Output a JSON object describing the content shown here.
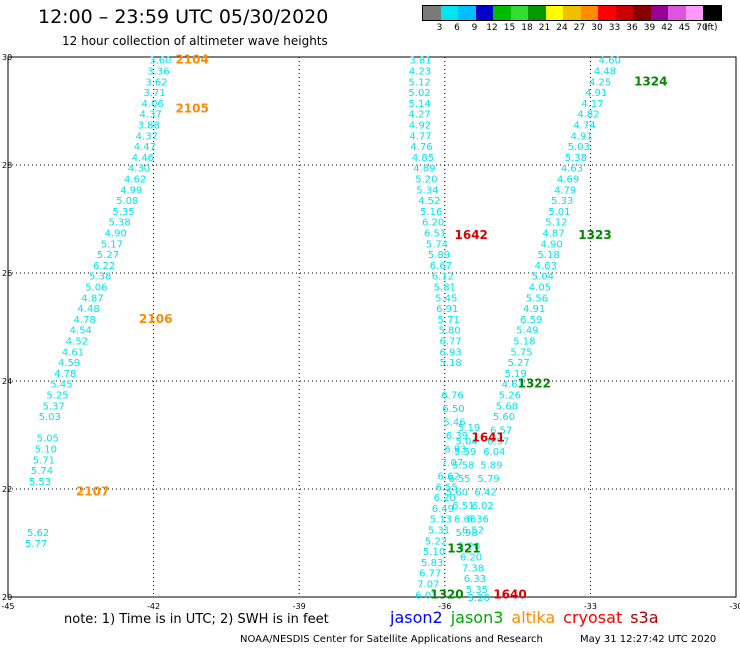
{
  "header": {
    "title": "12:00 – 23:59 UTC 05/30/2020",
    "subtitle": "12 hour collection of altimeter wave heights"
  },
  "colorbar": {
    "labels": [
      "3",
      "6",
      "9",
      "12",
      "15",
      "18",
      "21",
      "24",
      "27",
      "30",
      "33",
      "36",
      "39",
      "42",
      "45",
      "70",
      "(ft)"
    ],
    "colors": [
      "#7a7a7a",
      "#00e5ee",
      "#00bfff",
      "#0000cd",
      "#00bb00",
      "#33dd33",
      "#009900",
      "#ffff00",
      "#f0c000",
      "#ff8c00",
      "#ff0000",
      "#cc0000",
      "#880000",
      "#990099",
      "#dd55dd",
      "#ff99ff",
      "#000000"
    ]
  },
  "footer": {
    "note": "note:  1) Time is in UTC;  2) SWH is in feet",
    "legend": [
      {
        "label": "jason2",
        "color": "#0000ff"
      },
      {
        "label": "jason3",
        "color": "#00aa00"
      },
      {
        "label": "altika",
        "color": "#ff8c00"
      },
      {
        "label": "cryosat",
        "color": "#ff0000"
      },
      {
        "label": "s3a",
        "color": "#aa0000"
      }
    ],
    "credit": "NOAA/NESDIS Center for Satellite Applications and Research",
    "timestamp": "May 31 12:27:42 UTC 2020"
  },
  "chart_data": {
    "type": "scatter",
    "xlim": [
      -45,
      -30
    ],
    "ylim": [
      20,
      30
    ],
    "x_ticks": [
      -45,
      -42,
      -39,
      -36,
      -33,
      -30
    ],
    "y_ticks": [
      20,
      22,
      24,
      26,
      28,
      30
    ],
    "grid": true,
    "value_color": "#00e5ee",
    "tracks": [
      {
        "x": [
          -41.86,
          -41.9,
          -41.94,
          -41.98,
          -42.02,
          -42.06,
          -42.1,
          -42.14,
          -42.18,
          -42.22,
          -42.3,
          -42.38,
          -42.46,
          -42.54,
          -42.62,
          -42.7,
          -42.78,
          -42.86,
          -42.94,
          -43.02,
          -43.1,
          -43.18,
          -43.26,
          -43.34,
          -43.42,
          -43.5,
          -43.58,
          -43.66,
          -43.74,
          -43.82,
          -43.9,
          -43.98,
          -44.06,
          -44.14,
          -44.18,
          -44.22,
          -44.26,
          -44.3,
          -44.34
        ],
        "y": [
          29.95,
          29.75,
          29.55,
          29.35,
          29.15,
          28.95,
          28.75,
          28.55,
          28.35,
          28.15,
          27.95,
          27.75,
          27.55,
          27.35,
          27.15,
          26.95,
          26.75,
          26.55,
          26.35,
          26.15,
          25.95,
          25.75,
          25.55,
          25.35,
          25.15,
          24.95,
          24.75,
          24.55,
          24.35,
          24.15,
          23.95,
          23.75,
          23.55,
          23.35,
          22.95,
          22.75,
          22.55,
          22.35,
          22.15
        ],
        "values": [
          "3.60",
          "3.36",
          "3.62",
          "3.71",
          "4.06",
          "4.37",
          "3.88",
          "4.37",
          "4.47",
          "4.46",
          "4.30",
          "4.62",
          "4.99",
          "5.08",
          "5.35",
          "5.38",
          "4.90",
          "5.17",
          "5.27",
          "6.22",
          "5.38",
          "5.06",
          "4.87",
          "4.48",
          "4.78",
          "4.54",
          "4.52",
          "4.61",
          "4.59",
          "4.78",
          "5.45",
          "5.25",
          "5.37",
          "5.03",
          "5.05",
          "5.10",
          "5.71",
          "5.74",
          "5.53"
        ]
      },
      {
        "x": [
          -44.38,
          -44.42
        ],
        "y": [
          21.2,
          21.0
        ],
        "values": [
          "5.62",
          "5.77"
        ]
      },
      {
        "x": [
          -36.5,
          -36.51,
          -36.52,
          -36.52,
          -36.52,
          -36.52,
          -36.51,
          -36.5,
          -36.48,
          -36.45,
          -36.42,
          -36.38,
          -36.36,
          -36.32,
          -36.28,
          -36.24,
          -36.2,
          -36.16,
          -36.12,
          -36.08,
          -36.04,
          -36.0,
          -35.97,
          -35.95,
          -35.92,
          -35.9,
          -35.88,
          -35.88,
          -35.88
        ],
        "y": [
          29.95,
          29.75,
          29.55,
          29.35,
          29.15,
          28.95,
          28.75,
          28.55,
          28.35,
          28.15,
          27.95,
          27.75,
          27.55,
          27.35,
          27.15,
          26.95,
          26.75,
          26.55,
          26.35,
          26.15,
          25.95,
          25.75,
          25.55,
          25.35,
          25.15,
          24.95,
          24.75,
          24.55,
          24.35
        ],
        "values": [
          "3.81",
          "4.23",
          "5.12",
          "5.02",
          "5.14",
          "4.27",
          "4.92",
          "4.77",
          "4.76",
          "4.85",
          "4.89",
          "5.20",
          "5.34",
          "4.52",
          "5.16",
          "6.20",
          "6.51",
          "5.74",
          "5.89",
          "6.67",
          "6.12",
          "5.81",
          "5.45",
          "6.91",
          "5.71",
          "5.80",
          "6.77",
          "6.93",
          "5.18"
        ]
      },
      {
        "x": [
          -35.84,
          -35.82,
          -35.8,
          -35.75,
          -35.78,
          -35.85,
          -35.92,
          -35.96,
          -36.0,
          -36.04,
          -36.08,
          -36.12,
          -36.18,
          -36.22,
          -36.26,
          -36.3,
          -36.34,
          -36.38
        ],
        "y": [
          23.75,
          23.5,
          23.25,
          23.0,
          22.75,
          22.5,
          22.25,
          22.05,
          21.85,
          21.65,
          21.45,
          21.25,
          21.05,
          20.85,
          20.65,
          20.45,
          20.25,
          20.05
        ],
        "values": [
          "6.76",
          "6.50",
          "5.46",
          "6.39",
          "6.93",
          "7.07",
          "6.62",
          "6.55",
          "6.20",
          "6.49",
          "5.13",
          "5.31",
          "5.22",
          "5.10",
          "5.83",
          "6.77",
          "7.07",
          "6.01"
        ]
      },
      {
        "x": [
          -35.5,
          -35.55,
          -35.58,
          -35.62,
          -35.7,
          -35.75,
          -35.62,
          -35.58,
          -35.55,
          -35.5,
          -35.46,
          -35.42,
          -35.38,
          -35.34,
          -35.3
        ],
        "y": [
          23.15,
          22.9,
          22.7,
          22.45,
          22.2,
          21.95,
          21.7,
          21.45,
          21.2,
          20.95,
          20.75,
          20.55,
          20.35,
          20.15,
          20.0
        ],
        "values": [
          "5.19",
          "5.04",
          "5.59",
          "5.58",
          "6.55",
          "5.60",
          "6.51",
          "6.66",
          "5.98",
          "5.20",
          "6.20",
          "7.38",
          "6.33",
          "5.35",
          "5.20"
        ]
      },
      {
        "x": [
          -32.6,
          -32.7,
          -32.8,
          -32.88,
          -32.96,
          -33.04,
          -33.12,
          -33.18,
          -33.24,
          -33.3,
          -33.38,
          -33.46,
          -33.52,
          -33.58,
          -33.64,
          -33.7,
          -33.76,
          -33.8,
          -33.86,
          -33.92,
          -33.98,
          -34.04,
          -34.1,
          -34.16,
          -34.22,
          -34.3,
          -34.36,
          -34.42,
          -34.48,
          -34.54,
          -34.6,
          -34.66,
          -34.72,
          -34.78,
          -34.84,
          -34.9,
          -34.98,
          -35.04,
          -35.1,
          -35.16,
          -35.22,
          -35.32,
          -35.42
        ],
        "y": [
          29.95,
          29.75,
          29.55,
          29.35,
          29.15,
          28.95,
          28.75,
          28.55,
          28.35,
          28.15,
          27.95,
          27.75,
          27.55,
          27.35,
          27.15,
          26.95,
          26.75,
          26.55,
          26.35,
          26.15,
          25.95,
          25.75,
          25.55,
          25.35,
          25.15,
          24.95,
          24.75,
          24.55,
          24.35,
          24.15,
          23.95,
          23.75,
          23.55,
          23.35,
          23.1,
          22.9,
          22.7,
          22.45,
          22.2,
          21.95,
          21.7,
          21.45,
          21.25
        ],
        "values": [
          "4.60",
          "4.48",
          "4.25",
          "4.91",
          "4.17",
          "4.82",
          "4.74",
          "4.91",
          "5.03",
          "5.38",
          "4.63",
          "4.69",
          "4.79",
          "5.33",
          "5.01",
          "5.12",
          "4.87",
          "4.90",
          "5.18",
          "4.63",
          "5.04",
          "4.05",
          "5.56",
          "4.91",
          "6.59",
          "5.49",
          "5.18",
          "5.75",
          "5.27",
          "5.19",
          "4.61",
          "5.26",
          "5.68",
          "5.60",
          "6.57",
          "6.97",
          "6.04",
          "5.89",
          "5.79",
          "6.42",
          "6.02",
          "6.36",
          "6.52"
        ]
      }
    ],
    "pass_labels": [
      {
        "x": -41.55,
        "y": 29.95,
        "label": "2104",
        "satellite": "altika",
        "color": "#ff8c00"
      },
      {
        "x": -41.55,
        "y": 29.05,
        "label": "2105",
        "satellite": "altika",
        "color": "#ff8c00"
      },
      {
        "x": -42.3,
        "y": 25.15,
        "label": "2106",
        "satellite": "altika",
        "color": "#ff8c00"
      },
      {
        "x": -43.6,
        "y": 21.95,
        "label": "2107",
        "satellite": "altika",
        "color": "#ff8c00"
      },
      {
        "x": -35.8,
        "y": 26.7,
        "label": "1642",
        "satellite": "cryosat",
        "color": "#dd0000"
      },
      {
        "x": -35.45,
        "y": 22.95,
        "label": "1641",
        "satellite": "cryosat",
        "color": "#dd0000"
      },
      {
        "x": -35.0,
        "y": 20.05,
        "label": "1640",
        "satellite": "cryosat",
        "color": "#dd0000"
      },
      {
        "x": -32.1,
        "y": 29.55,
        "label": "1324",
        "satellite": "jason3",
        "color": "#008800"
      },
      {
        "x": -33.25,
        "y": 26.7,
        "label": "1323",
        "satellite": "jason3",
        "color": "#008800"
      },
      {
        "x": -34.5,
        "y": 23.95,
        "label": "1322",
        "satellite": "jason3",
        "color": "#008800"
      },
      {
        "x": -35.95,
        "y": 20.9,
        "label": "1321",
        "satellite": "jason3",
        "color": "#008800"
      },
      {
        "x": -36.3,
        "y": 20.05,
        "label": "1320",
        "satellite": "jason3",
        "color": "#008800"
      }
    ]
  }
}
